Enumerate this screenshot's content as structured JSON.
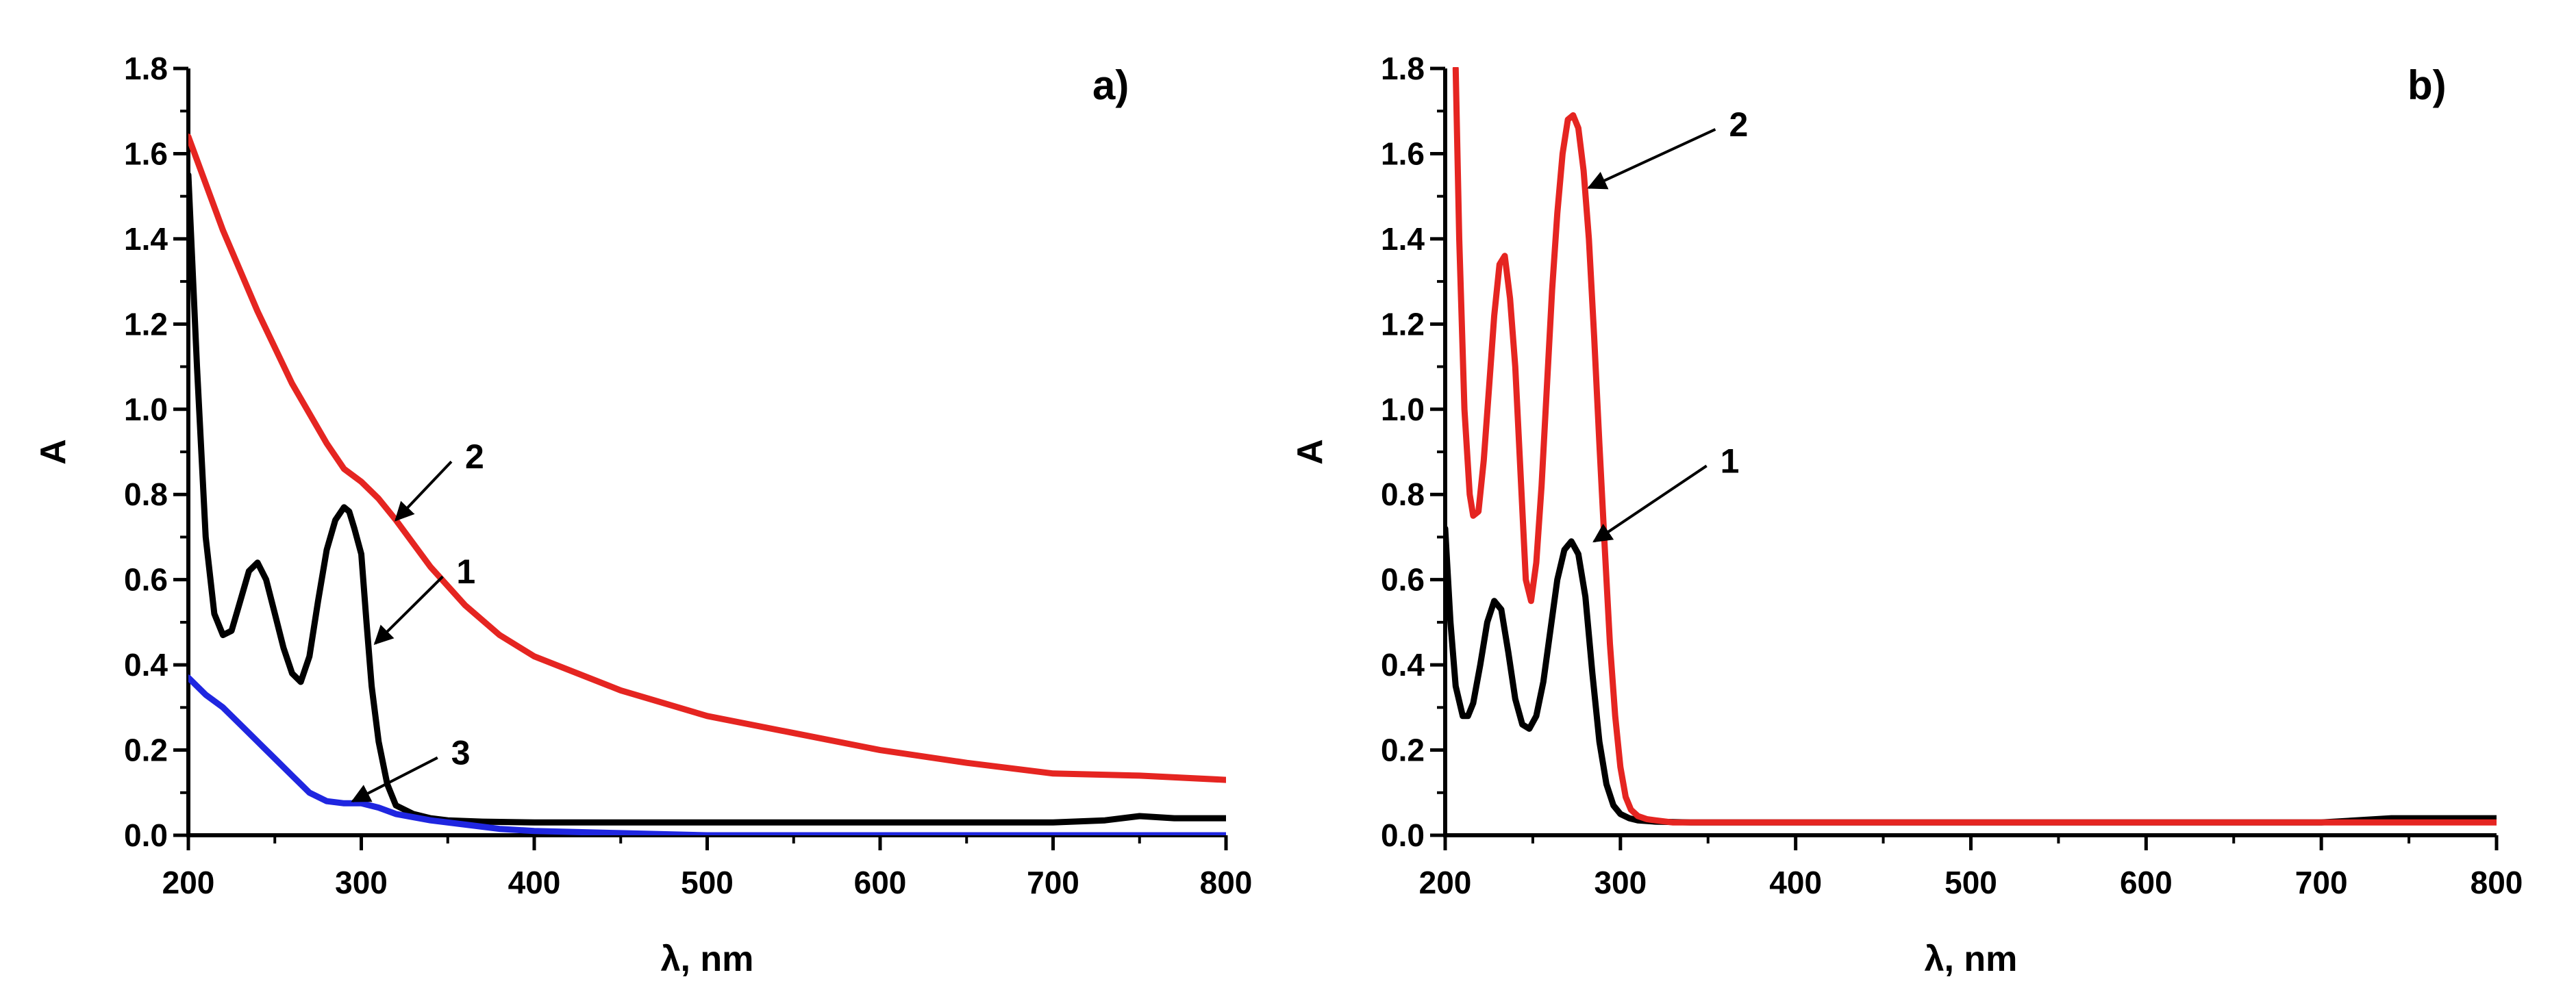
{
  "chart_data": [
    {
      "panel": "a",
      "type": "line",
      "panel_label": "a)",
      "xlabel": "λ, nm",
      "ylabel": "A",
      "xlim": [
        200,
        800
      ],
      "ylim": [
        0,
        1.8
      ],
      "xticks": [
        "200",
        "300",
        "400",
        "500",
        "600",
        "700",
        "800"
      ],
      "yticks": [
        "0.0",
        "0.2",
        "0.4",
        "0.6",
        "0.8",
        "1.0",
        "1.2",
        "1.4",
        "1.6",
        "1.8"
      ],
      "series": [
        {
          "name": "1",
          "color": "#000000",
          "x": [
            200,
            205,
            210,
            215,
            220,
            225,
            230,
            235,
            240,
            245,
            250,
            255,
            260,
            265,
            270,
            275,
            280,
            285,
            290,
            293,
            296,
            300,
            303,
            306,
            310,
            315,
            320,
            330,
            340,
            350,
            370,
            400,
            500,
            600,
            700,
            730,
            750,
            770,
            800
          ],
          "y": [
            1.55,
            1.1,
            0.7,
            0.52,
            0.47,
            0.48,
            0.55,
            0.62,
            0.64,
            0.6,
            0.52,
            0.44,
            0.38,
            0.36,
            0.42,
            0.55,
            0.67,
            0.74,
            0.77,
            0.76,
            0.72,
            0.66,
            0.5,
            0.35,
            0.22,
            0.12,
            0.07,
            0.05,
            0.04,
            0.035,
            0.032,
            0.03,
            0.03,
            0.03,
            0.03,
            0.035,
            0.045,
            0.04,
            0.04
          ]
        },
        {
          "name": "2",
          "color": "#e52521",
          "x": [
            200,
            220,
            240,
            260,
            280,
            290,
            300,
            310,
            320,
            340,
            360,
            380,
            400,
            450,
            500,
            550,
            600,
            650,
            700,
            750,
            800
          ],
          "y": [
            1.64,
            1.42,
            1.23,
            1.06,
            0.92,
            0.86,
            0.83,
            0.79,
            0.74,
            0.63,
            0.54,
            0.47,
            0.42,
            0.34,
            0.28,
            0.24,
            0.2,
            0.17,
            0.145,
            0.14,
            0.13
          ]
        },
        {
          "name": "3",
          "color": "#1f26e0",
          "x": [
            200,
            210,
            220,
            230,
            240,
            250,
            260,
            270,
            280,
            290,
            300,
            310,
            320,
            340,
            360,
            380,
            400,
            450,
            500,
            600,
            700,
            800
          ],
          "y": [
            0.37,
            0.33,
            0.3,
            0.26,
            0.22,
            0.18,
            0.14,
            0.1,
            0.08,
            0.075,
            0.075,
            0.065,
            0.05,
            0.035,
            0.025,
            0.015,
            0.01,
            0.005,
            0.0,
            0.0,
            0.0,
            0.0
          ]
        }
      ],
      "annotations": [
        {
          "text": "2",
          "series": "2",
          "point_x": 320,
          "point_y": 0.74,
          "label_x": 360,
          "label_y": 0.89
        },
        {
          "text": "1",
          "series": "1",
          "point_x": 308,
          "point_y": 0.45,
          "label_x": 355,
          "label_y": 0.62
        },
        {
          "text": "3",
          "series": "3",
          "point_x": 295,
          "point_y": 0.08,
          "label_x": 352,
          "label_y": 0.195
        }
      ]
    },
    {
      "panel": "b",
      "type": "line",
      "panel_label": "b)",
      "xlabel": "λ, nm",
      "ylabel": "A",
      "xlim": [
        200,
        800
      ],
      "ylim": [
        0,
        1.8
      ],
      "xticks": [
        "200",
        "300",
        "400",
        "500",
        "600",
        "700",
        "800"
      ],
      "yticks": [
        "0.0",
        "0.2",
        "0.4",
        "0.6",
        "0.8",
        "1.0",
        "1.2",
        "1.4",
        "1.6",
        "1.8"
      ],
      "series": [
        {
          "name": "1",
          "color": "#000000",
          "x": [
            200,
            203,
            206,
            210,
            213,
            216,
            220,
            224,
            228,
            232,
            236,
            240,
            244,
            248,
            252,
            256,
            260,
            264,
            268,
            272,
            276,
            280,
            284,
            288,
            292,
            296,
            300,
            305,
            310,
            320,
            340,
            400,
            500,
            600,
            700,
            740,
            760,
            800
          ],
          "y": [
            0.72,
            0.5,
            0.35,
            0.28,
            0.28,
            0.31,
            0.4,
            0.5,
            0.55,
            0.53,
            0.43,
            0.32,
            0.26,
            0.25,
            0.28,
            0.36,
            0.48,
            0.6,
            0.67,
            0.69,
            0.66,
            0.56,
            0.38,
            0.22,
            0.12,
            0.07,
            0.05,
            0.04,
            0.035,
            0.032,
            0.03,
            0.03,
            0.03,
            0.03,
            0.03,
            0.04,
            0.04,
            0.04
          ]
        },
        {
          "name": "2",
          "color": "#e52521",
          "x": [
            206,
            208,
            211,
            214,
            216,
            219,
            222,
            225,
            228,
            231,
            234,
            237,
            240,
            243,
            246,
            249,
            252,
            255,
            258,
            261,
            264,
            267,
            270,
            273,
            276,
            279,
            282,
            285,
            288,
            291,
            294,
            297,
            300,
            303,
            306,
            310,
            315,
            320,
            330,
            360,
            400,
            500,
            600,
            700,
            800
          ],
          "y": [
            1.8,
            1.4,
            1.0,
            0.8,
            0.75,
            0.76,
            0.88,
            1.05,
            1.22,
            1.34,
            1.36,
            1.26,
            1.1,
            0.85,
            0.6,
            0.55,
            0.64,
            0.82,
            1.05,
            1.28,
            1.46,
            1.6,
            1.68,
            1.69,
            1.66,
            1.56,
            1.4,
            1.17,
            0.92,
            0.68,
            0.45,
            0.28,
            0.16,
            0.09,
            0.06,
            0.045,
            0.038,
            0.035,
            0.03,
            0.03,
            0.03,
            0.03,
            0.03,
            0.03,
            0.03
          ]
        }
      ],
      "annotations": [
        {
          "text": "2",
          "series": "2",
          "point_x": 282,
          "point_y": 1.52,
          "label_x": 362,
          "label_y": 1.67
        },
        {
          "text": "1",
          "series": "1",
          "point_x": 285,
          "point_y": 0.69,
          "label_x": 357,
          "label_y": 0.88
        }
      ]
    }
  ]
}
